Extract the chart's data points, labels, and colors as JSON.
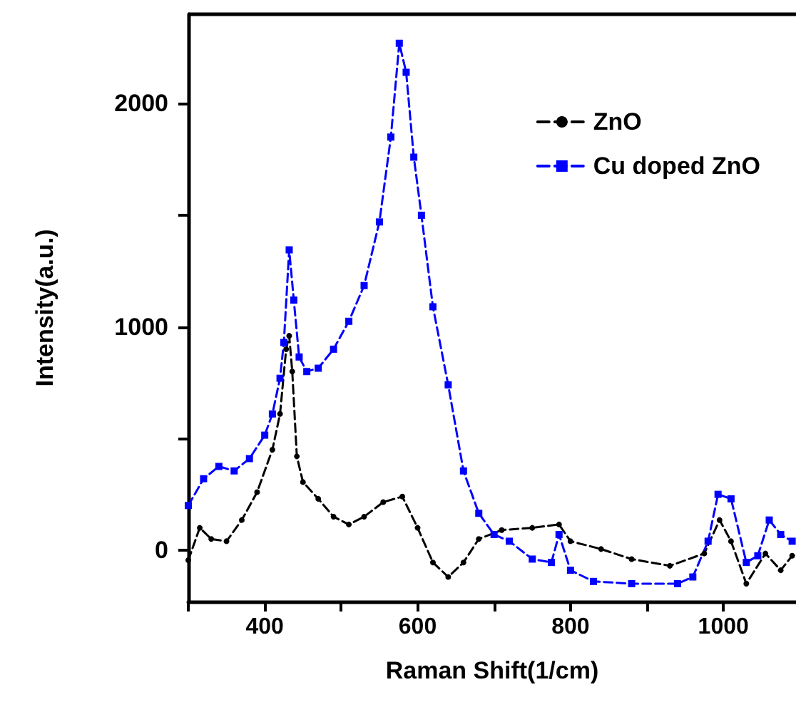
{
  "chart_data": {
    "type": "line",
    "xlabel": "Raman Shift(1/cm)",
    "ylabel": "Intensity(a.u.)",
    "xlim": [
      300,
      1095
    ],
    "xticks": [
      {
        "value": 300,
        "label": null
      },
      400,
      {
        "value": 500,
        "label": null
      },
      600,
      {
        "value": 700,
        "label": null
      },
      800,
      {
        "value": 900,
        "label": null
      },
      1000
    ],
    "ylim": [
      -230,
      2400
    ],
    "yticks": [
      0,
      {
        "value": 500,
        "label": null
      },
      1000,
      {
        "value": 1500,
        "label": null
      },
      2000
    ],
    "grid": false,
    "legend": "top right",
    "line_style": "dashed",
    "series": [
      {
        "name": "ZnO",
        "color": "#000000",
        "marker": "circle",
        "x": [
          300,
          315,
          330,
          350,
          370,
          390,
          410,
          420,
          428,
          432,
          436,
          442,
          450,
          470,
          490,
          510,
          530,
          555,
          580,
          600,
          620,
          640,
          660,
          680,
          710,
          750,
          785,
          800,
          840,
          880,
          930,
          975,
          995,
          1010,
          1030,
          1055,
          1075,
          1090
        ],
        "values": [
          -45,
          100,
          50,
          40,
          135,
          260,
          450,
          610,
          900,
          960,
          800,
          420,
          305,
          230,
          150,
          115,
          150,
          215,
          240,
          100,
          -55,
          -120,
          -55,
          50,
          90,
          100,
          115,
          40,
          5,
          -40,
          -70,
          -15,
          135,
          40,
          -150,
          -15,
          -90,
          -25
        ]
      },
      {
        "name": "Cu doped ZnO",
        "color": "#0000ff",
        "marker": "square",
        "x": [
          300,
          320,
          340,
          360,
          380,
          400,
          410,
          420,
          425,
          432,
          438,
          445,
          455,
          470,
          490,
          510,
          530,
          550,
          565,
          576,
          585,
          595,
          605,
          620,
          640,
          660,
          680,
          700,
          720,
          750,
          775,
          785,
          800,
          830,
          880,
          940,
          960,
          980,
          993,
          1010,
          1030,
          1045,
          1060,
          1075,
          1090
        ],
        "values": [
          200,
          320,
          375,
          355,
          410,
          515,
          610,
          770,
          930,
          1345,
          1120,
          865,
          800,
          815,
          900,
          1025,
          1185,
          1470,
          1850,
          2270,
          2140,
          1760,
          1500,
          1090,
          740,
          355,
          165,
          70,
          40,
          -40,
          -55,
          70,
          -90,
          -140,
          -150,
          -150,
          -120,
          40,
          250,
          230,
          -55,
          -25,
          135,
          70,
          40
        ]
      }
    ]
  }
}
